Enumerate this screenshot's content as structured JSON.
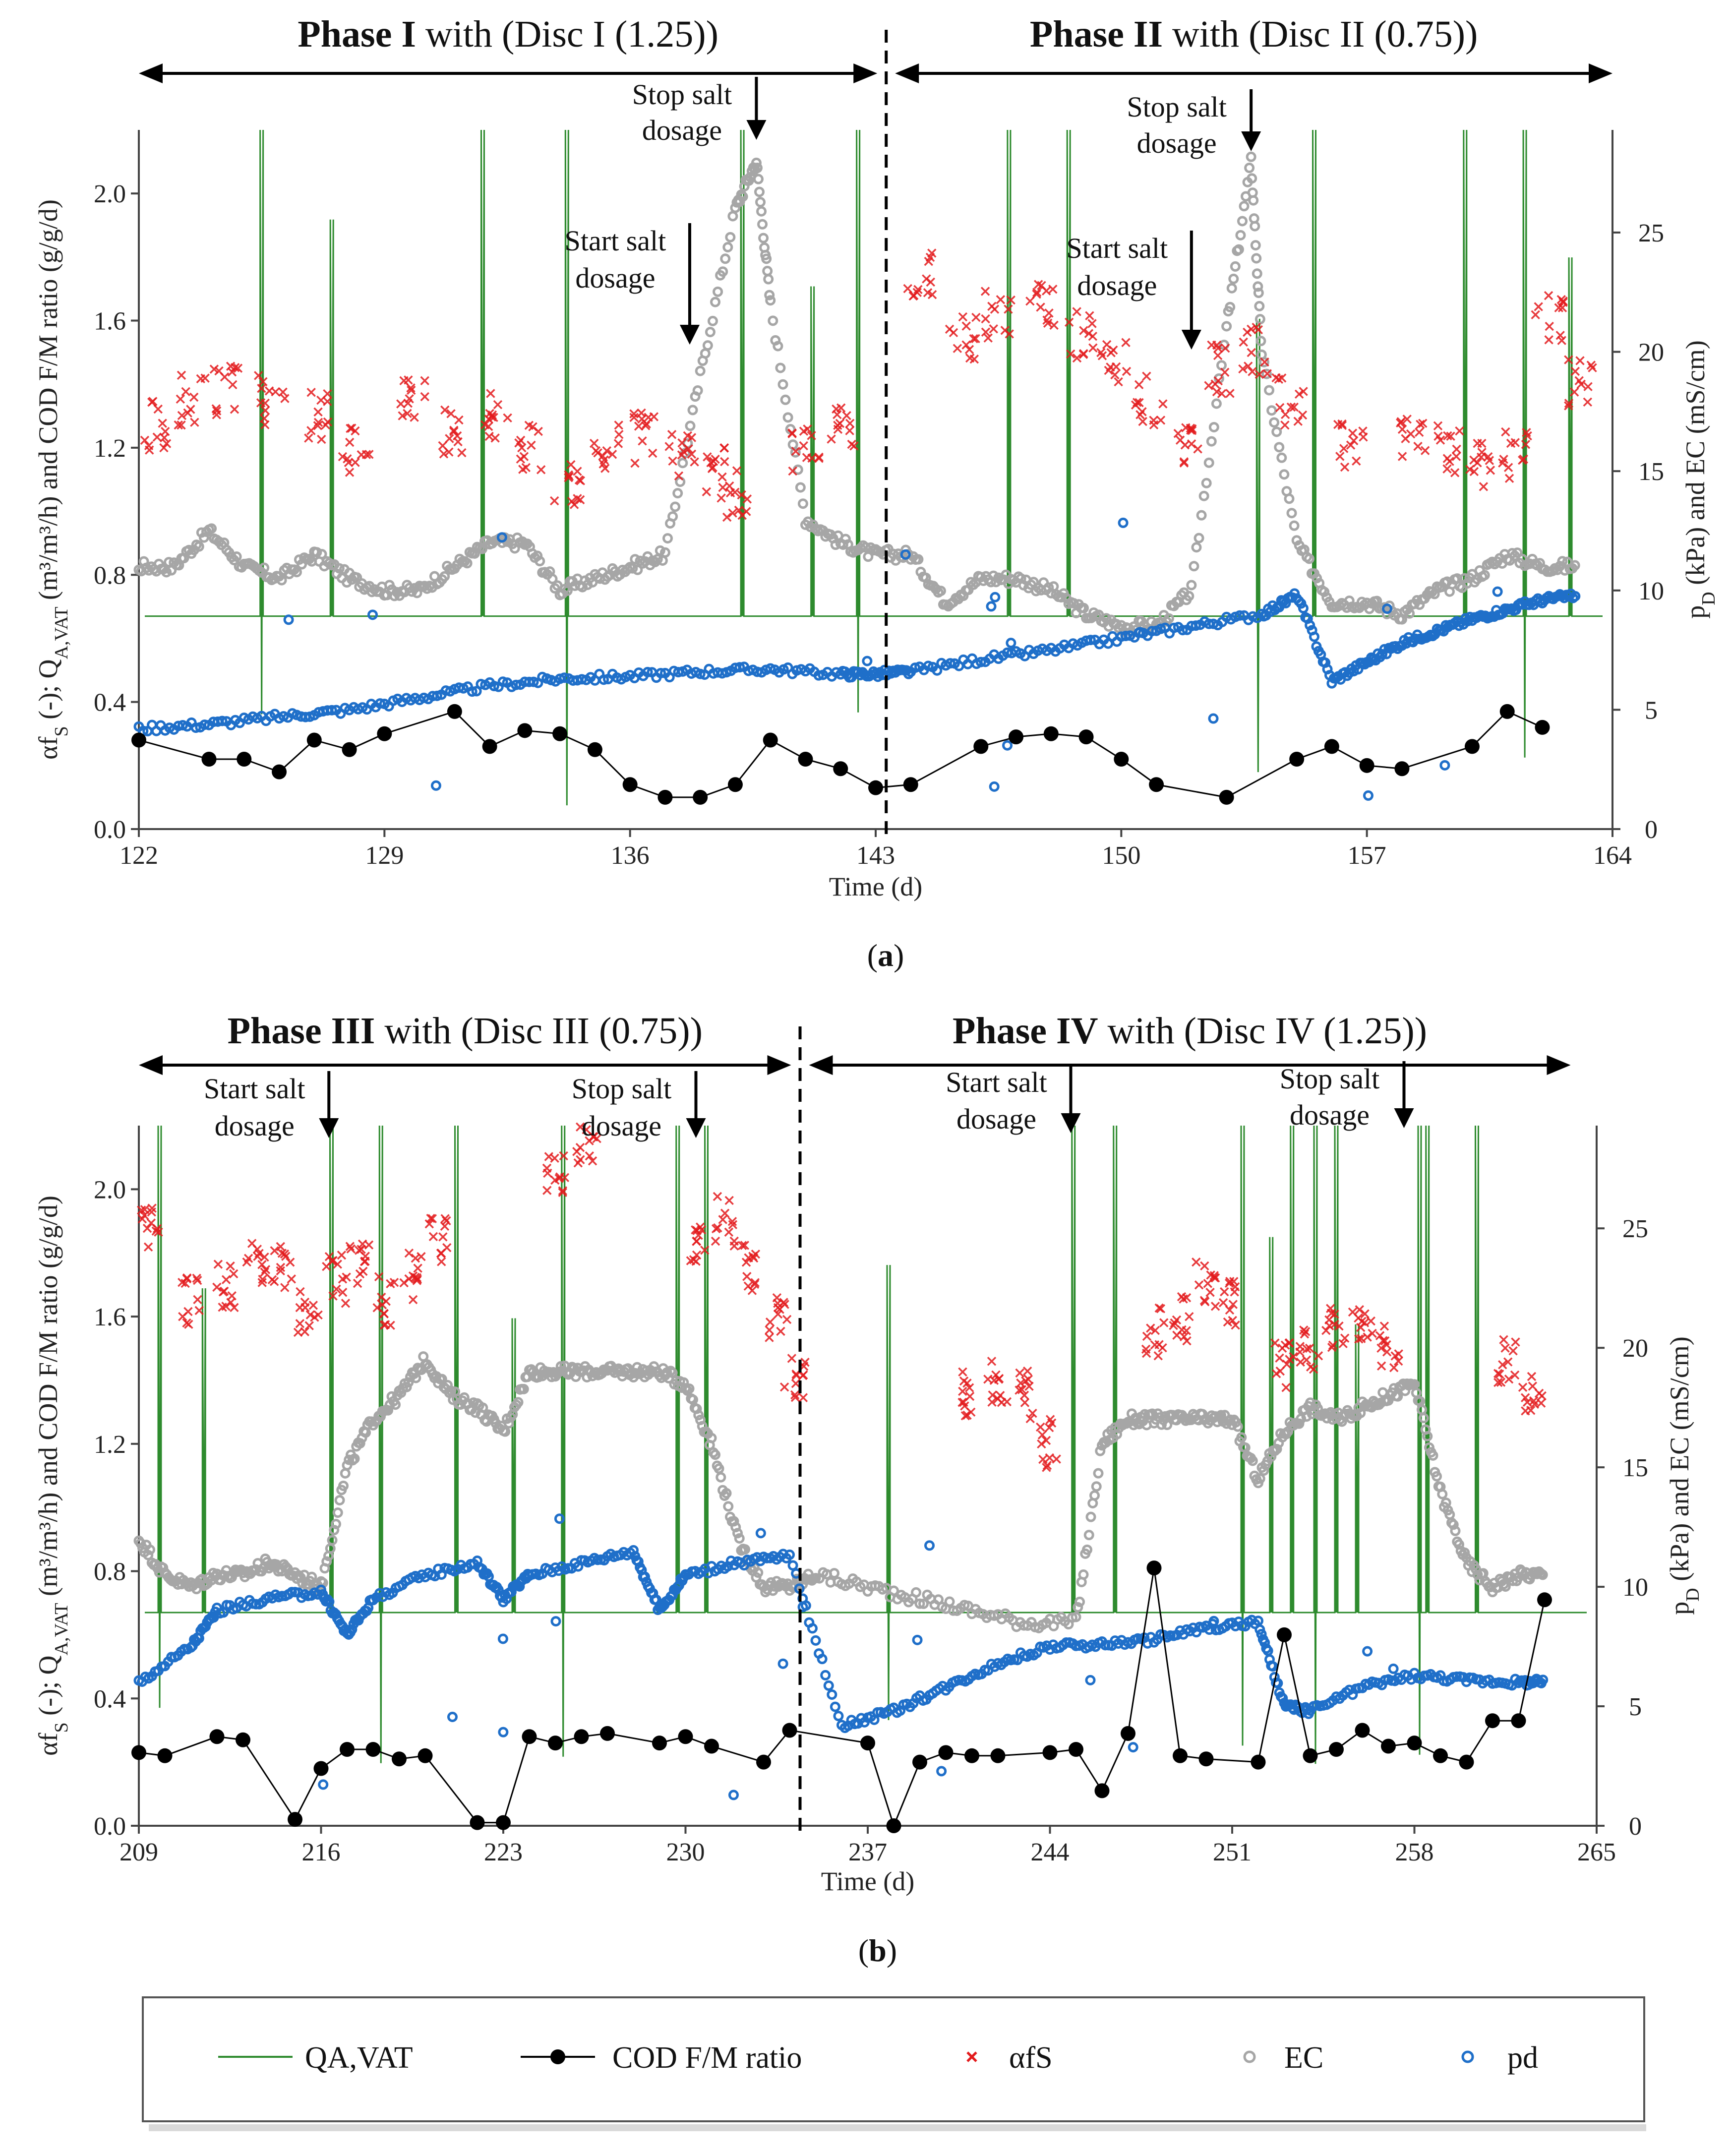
{
  "colors": {
    "qa": "#2e8b2e",
    "cod": "#000000",
    "afs": "#e31a1c",
    "ec": "#a6a6a6",
    "pd": "#1f6fc9",
    "axis": "#444444"
  },
  "legend": [
    "QA,VAT",
    "COD F/M ratio",
    "αfS",
    "EC",
    "pd"
  ],
  "chart_data": [
    {
      "type": "line",
      "panel_label": "(a)",
      "panel_letter": "a",
      "xlabel": "Time (d)",
      "ylabel_left_parts": [
        "αf",
        "S",
        " (-); Q",
        "A,VAT",
        " (m³/m³/h) and COD F/M ratio (g/g/d)"
      ],
      "ylabel_right_parts": [
        "p",
        "D",
        " (kPa) and EC (mS/cm)"
      ],
      "xlim": [
        122,
        164
      ],
      "xticks": [
        122,
        129,
        136,
        143,
        150,
        157,
        164
      ],
      "ylim_left": [
        0,
        2.2
      ],
      "yticks_left": [
        "0.0",
        "0.4",
        "0.8",
        "1.2",
        "1.6",
        "2.0"
      ],
      "ylim_right": [
        0,
        29.3
      ],
      "yticks_right": [
        0,
        5,
        10,
        15,
        20,
        25
      ],
      "divider_x": 143.3,
      "phases": [
        {
          "bold": "Phase I",
          "rest": " with (Disc I (1.25))",
          "x_start": 122,
          "x_end": 143.3
        },
        {
          "bold": "Phase II",
          "rest": " with (Disc II (0.75))",
          "x_start": 143.3,
          "x_end": 164
        }
      ],
      "annotations": [
        {
          "lines": [
            "Stop salt",
            "dosage"
          ],
          "x": 139.6
        },
        {
          "lines": [
            "Start salt",
            "dosage"
          ],
          "x": 137.7
        },
        {
          "lines": [
            "Stop salt",
            "dosage"
          ],
          "x": 153.7
        },
        {
          "lines": [
            "Start salt",
            "dosage"
          ],
          "x": 152.0
        }
      ],
      "series": {
        "cod_fm": {
          "x": [
            122,
            124,
            125,
            126,
            127,
            128,
            129,
            131,
            132,
            133,
            134,
            135,
            136,
            137,
            138,
            139,
            140,
            141,
            142,
            143,
            144,
            146,
            147,
            148,
            149,
            150,
            151,
            153,
            155,
            156,
            157,
            158,
            160,
            161,
            162
          ],
          "y": [
            0.28,
            0.22,
            0.22,
            0.18,
            0.28,
            0.25,
            0.3,
            0.37,
            0.26,
            0.31,
            0.3,
            0.25,
            0.14,
            0.1,
            0.1,
            0.14,
            0.28,
            0.22,
            0.19,
            0.13,
            0.14,
            0.26,
            0.29,
            0.3,
            0.29,
            0.22,
            0.14,
            0.1,
            0.22,
            0.26,
            0.2,
            0.19,
            0.26,
            0.37,
            0.32
          ]
        },
        "ec": {
          "x": [
            122,
            123,
            124,
            125,
            126,
            127,
            128,
            129,
            130,
            131,
            132,
            133,
            134,
            135,
            136,
            137,
            138,
            139,
            139.6,
            140,
            141,
            142,
            143,
            144,
            145,
            146,
            147,
            148,
            149,
            150,
            151,
            152,
            153,
            153.7,
            154,
            155,
            156,
            157,
            158,
            159,
            160,
            161,
            162,
            163
          ],
          "y": [
            11,
            11,
            12.5,
            11,
            10.5,
            11.5,
            10.5,
            10,
            10,
            11,
            12,
            12,
            10,
            10.5,
            11,
            11.5,
            19,
            26,
            28,
            22,
            13,
            12,
            11.5,
            11.5,
            9.5,
            10.5,
            10.5,
            10,
            9,
            8.5,
            8.5,
            10,
            21,
            28,
            20,
            12,
            9.5,
            9.5,
            9,
            10,
            10.5,
            11.5,
            11,
            11
          ]
        },
        "pd": {
          "x": [
            122,
            124,
            126,
            128,
            130,
            132,
            134,
            136,
            138,
            140,
            142,
            143,
            144,
            146,
            148,
            150,
            152,
            154,
            155,
            156,
            157,
            158,
            159,
            160,
            161,
            162,
            163
          ],
          "y": [
            4.2,
            4.4,
            4.7,
            5.0,
            5.5,
            6.0,
            6.3,
            6.4,
            6.6,
            6.7,
            6.5,
            6.5,
            6.6,
            7.1,
            7.5,
            8.0,
            8.5,
            9.0,
            9.8,
            6.2,
            7.0,
            7.8,
            8.3,
            8.8,
            9.2,
            9.6,
            9.8
          ]
        },
        "afs": {
          "x": [
            122.5,
            123.5,
            124.5,
            125.8,
            127,
            128.2,
            129.8,
            131,
            132.2,
            133.2,
            134.2,
            135.3,
            136.5,
            137.5,
            138.5,
            139,
            141,
            142,
            144.3,
            145.5,
            146.5,
            147.8,
            148.8,
            149.8,
            150.8,
            151.8,
            152.8,
            153.8,
            154.8,
            156.5,
            158.3,
            159.3,
            160.3,
            161.2,
            162.2,
            163.1
          ],
          "y": [
            1.27,
            1.35,
            1.38,
            1.35,
            1.3,
            1.2,
            1.37,
            1.25,
            1.3,
            1.2,
            1.1,
            1.2,
            1.23,
            1.18,
            1.12,
            1.05,
            1.2,
            1.25,
            1.75,
            1.55,
            1.62,
            1.65,
            1.55,
            1.48,
            1.35,
            1.22,
            1.45,
            1.5,
            1.35,
            1.2,
            1.25,
            1.2,
            1.15,
            1.17,
            1.6,
            1.4
          ]
        },
        "qa": {
          "base": 0.67,
          "spikes": [
            125.5,
            127.5,
            131.8,
            134.2,
            139.2,
            141.2,
            142.5,
            146.8,
            148.5,
            153.9,
            155.5,
            159.8,
            161.5,
            162.8
          ]
        }
      }
    },
    {
      "type": "line",
      "panel_label": "(b)",
      "panel_letter": "b",
      "xlabel": "Time (d)",
      "ylabel_left_parts": [
        "αf",
        "S",
        " (-); Q",
        "A,VAT",
        " (m³/m³/h) and COD F/M ratio (g/g/d)"
      ],
      "ylabel_right_parts": [
        "p",
        "D",
        " (kPa) and EC (mS/cm)"
      ],
      "xlim": [
        209,
        265
      ],
      "xticks": [
        209,
        216,
        223,
        230,
        237,
        244,
        251,
        258,
        265
      ],
      "ylim_left": [
        0,
        2.2
      ],
      "yticks_left": [
        "0.0",
        "0.4",
        "0.8",
        "1.2",
        "1.6",
        "2.0"
      ],
      "ylim_right": [
        0,
        29.3
      ],
      "yticks_right": [
        0,
        5,
        10,
        15,
        20,
        25
      ],
      "divider_x": 234.4,
      "phases": [
        {
          "bold": "Phase III",
          "rest": " with (Disc III (0.75))",
          "x_start": 209,
          "x_end": 234.4
        },
        {
          "bold": "Phase IV",
          "rest": " with (Disc IV (1.25))",
          "x_start": 234.4,
          "x_end": 264
        }
      ],
      "annotations": [
        {
          "lines": [
            "Start salt",
            "dosage"
          ],
          "x": 216.3
        },
        {
          "lines": [
            "Stop salt",
            "dosage"
          ],
          "x": 230.4
        },
        {
          "lines": [
            "Start salt",
            "dosage"
          ],
          "x": 244.8
        },
        {
          "lines": [
            "Stop salt",
            "dosage"
          ],
          "x": 257.6
        }
      ],
      "series": {
        "cod_fm": {
          "x": [
            209,
            210,
            212,
            213,
            215,
            216,
            217,
            218,
            219,
            220,
            222,
            223,
            224,
            225,
            226,
            227,
            229,
            230,
            231,
            233,
            234,
            237,
            238,
            239,
            240,
            241,
            242,
            244,
            245,
            246,
            247,
            248,
            249,
            250,
            252,
            253,
            254,
            255,
            256,
            257,
            258,
            259,
            260,
            261,
            262,
            263
          ],
          "y": [
            0.23,
            0.22,
            0.28,
            0.27,
            0.02,
            0.18,
            0.24,
            0.24,
            0.21,
            0.22,
            0.01,
            0.01,
            0.28,
            0.26,
            0.28,
            0.29,
            0.26,
            0.28,
            0.25,
            0.2,
            0.3,
            0.26,
            0.0,
            0.2,
            0.23,
            0.22,
            0.22,
            0.23,
            0.24,
            0.11,
            0.29,
            0.81,
            0.22,
            0.21,
            0.2,
            0.6,
            0.22,
            0.24,
            0.3,
            0.25,
            0.26,
            0.22,
            0.2,
            0.33,
            0.33,
            0.71
          ]
        },
        "ec": {
          "x": [
            209,
            210,
            211,
            212,
            213,
            214,
            215,
            216,
            217,
            218,
            219,
            220,
            221,
            222,
            223,
            224,
            225,
            226,
            227,
            228,
            229,
            230,
            231,
            232,
            233,
            234,
            235,
            237,
            239,
            241,
            243,
            245,
            246,
            247,
            248,
            249,
            250,
            251,
            252,
            253,
            254,
            255,
            256,
            257,
            258,
            259,
            260,
            261,
            262,
            263
          ],
          "y": [
            12,
            10.5,
            10,
            10.5,
            10.5,
            11,
            10.5,
            10,
            15,
            17,
            18,
            19.5,
            18,
            17.5,
            16.5,
            19,
            19,
            19,
            19,
            19,
            19,
            18.5,
            16,
            12,
            10,
            10,
            10.5,
            10,
            9.5,
            9,
            8.5,
            8.5,
            16,
            17,
            17,
            17,
            17,
            17,
            14.5,
            16.5,
            17.5,
            17,
            17.5,
            18,
            18.5,
            14,
            11,
            10,
            10.5,
            10.5
          ]
        },
        "pd": {
          "x": [
            209,
            211,
            212,
            214,
            216,
            217,
            218,
            220,
            222,
            223,
            224,
            226,
            228,
            229,
            230,
            232,
            234,
            236,
            238,
            240,
            242,
            244,
            246,
            248,
            250,
            252,
            253,
            254,
            256,
            258,
            260,
            262,
            263
          ],
          "y": [
            6.0,
            7.5,
            9.0,
            9.5,
            9.8,
            8.0,
            9.5,
            10.5,
            11.0,
            9.5,
            10.5,
            11.0,
            11.5,
            9.0,
            10.5,
            11.0,
            11.3,
            4.2,
            4.8,
            5.8,
            6.8,
            7.5,
            7.6,
            7.8,
            8.3,
            8.5,
            5.0,
            4.8,
            5.8,
            6.3,
            6.1,
            6.0,
            6.0
          ]
        },
        "afs": {
          "x": [
            209.5,
            211,
            212.3,
            213.5,
            214.5,
            215.5,
            216.6,
            217.5,
            218.5,
            219.5,
            220.5,
            225,
            226.2,
            230.5,
            231.5,
            232.5,
            233.5,
            234.2,
            241,
            242,
            243,
            244,
            248,
            249,
            250,
            251,
            253,
            254,
            255,
            256,
            257,
            261.5,
            262.5
          ],
          "y": [
            1.88,
            1.65,
            1.7,
            1.75,
            1.75,
            1.6,
            1.72,
            1.75,
            1.65,
            1.72,
            1.85,
            2.05,
            2.12,
            1.85,
            1.9,
            1.75,
            1.6,
            1.42,
            1.35,
            1.4,
            1.35,
            1.2,
            1.55,
            1.6,
            1.7,
            1.65,
            1.45,
            1.5,
            1.55,
            1.6,
            1.5,
            1.45,
            1.35
          ]
        },
        "qa": {
          "base": 0.67,
          "spikes": [
            209.8,
            211.5,
            216.4,
            218.3,
            221.2,
            223.4,
            225.3,
            229.7,
            230.8,
            237.8,
            244.9,
            246.5,
            251.4,
            252.5,
            253.3,
            254.2,
            255.0,
            255.8,
            258.2,
            258.5,
            260.4
          ]
        }
      }
    }
  ]
}
